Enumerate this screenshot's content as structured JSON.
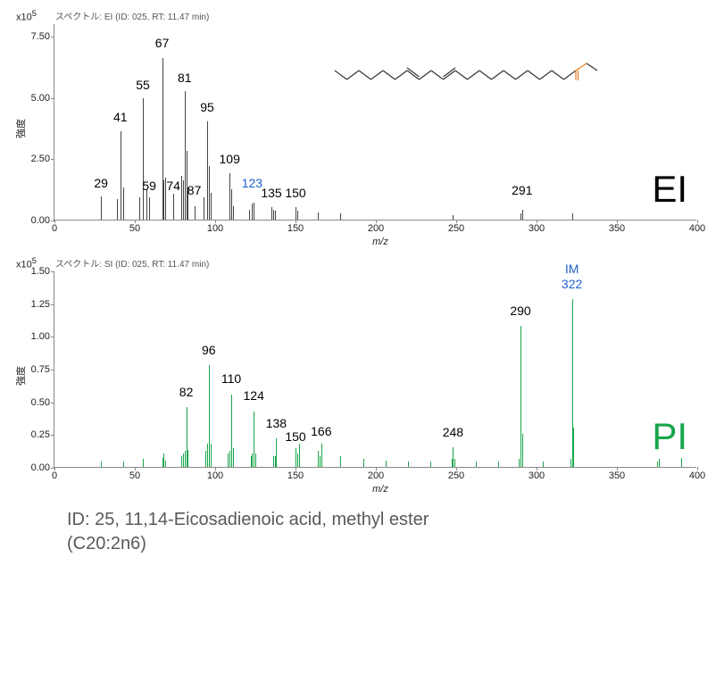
{
  "compound_name_line1": "ID: 25, 11,14-Eicosadienoic acid, methyl ester",
  "compound_name_line2": "(C20:2n6)",
  "ei": {
    "title": "スペクトル: EI (ID: 025, RT: 11.47 min)",
    "exponent": "x10",
    "exponent_sup": "5",
    "big_label": "EI",
    "big_label_color": "#000000",
    "bar_color": "#444444",
    "xlim": [
      0,
      400
    ],
    "ylim": [
      0,
      8.0
    ],
    "y_ticks": [
      "0.00",
      "2.50",
      "5.00",
      "7.50"
    ],
    "x_ticks": [
      0,
      50,
      100,
      150,
      200,
      250,
      300,
      350,
      400
    ],
    "y_axis_label": "強度",
    "x_axis_label": "m/z",
    "peaks": [
      {
        "mz": 29,
        "h": 0.95
      },
      {
        "mz": 39,
        "h": 0.85
      },
      {
        "mz": 41,
        "h": 3.6
      },
      {
        "mz": 43,
        "h": 1.3
      },
      {
        "mz": 53,
        "h": 0.9
      },
      {
        "mz": 55,
        "h": 4.95
      },
      {
        "mz": 57,
        "h": 1.2
      },
      {
        "mz": 59,
        "h": 0.9
      },
      {
        "mz": 67,
        "h": 6.6
      },
      {
        "mz": 68,
        "h": 1.6
      },
      {
        "mz": 69,
        "h": 1.7
      },
      {
        "mz": 74,
        "h": 1.05
      },
      {
        "mz": 79,
        "h": 1.8
      },
      {
        "mz": 80,
        "h": 1.6
      },
      {
        "mz": 81,
        "h": 5.25
      },
      {
        "mz": 82,
        "h": 2.8
      },
      {
        "mz": 83,
        "h": 1.3
      },
      {
        "mz": 87,
        "h": 0.55
      },
      {
        "mz": 93,
        "h": 0.9
      },
      {
        "mz": 95,
        "h": 4.0
      },
      {
        "mz": 96,
        "h": 2.2
      },
      {
        "mz": 97,
        "h": 1.1
      },
      {
        "mz": 109,
        "h": 1.9
      },
      {
        "mz": 110,
        "h": 1.25
      },
      {
        "mz": 111,
        "h": 0.55
      },
      {
        "mz": 121,
        "h": 0.4
      },
      {
        "mz": 123,
        "h": 0.65
      },
      {
        "mz": 124,
        "h": 0.7
      },
      {
        "mz": 135,
        "h": 0.5
      },
      {
        "mz": 136,
        "h": 0.4
      },
      {
        "mz": 137,
        "h": 0.35
      },
      {
        "mz": 150,
        "h": 0.5
      },
      {
        "mz": 151,
        "h": 0.35
      },
      {
        "mz": 164,
        "h": 0.3
      },
      {
        "mz": 178,
        "h": 0.25
      },
      {
        "mz": 248,
        "h": 0.2
      },
      {
        "mz": 290,
        "h": 0.25
      },
      {
        "mz": 291,
        "h": 0.4
      },
      {
        "mz": 322,
        "h": 0.25
      }
    ],
    "labels": [
      {
        "mz": 29,
        "y": 1.2,
        "text": "29",
        "color": "#000"
      },
      {
        "mz": 41,
        "y": 3.9,
        "text": "41",
        "color": "#000"
      },
      {
        "mz": 55,
        "y": 5.2,
        "text": "55",
        "color": "#000"
      },
      {
        "mz": 59,
        "y": 1.1,
        "text": "59",
        "color": "#000"
      },
      {
        "mz": 67,
        "y": 6.9,
        "text": "67",
        "color": "#000"
      },
      {
        "mz": 74,
        "y": 1.1,
        "text": "74",
        "color": "#000"
      },
      {
        "mz": 81,
        "y": 5.5,
        "text": "81",
        "color": "#000"
      },
      {
        "mz": 87,
        "y": 0.9,
        "text": "87",
        "color": "#000"
      },
      {
        "mz": 95,
        "y": 4.3,
        "text": "95",
        "color": "#000"
      },
      {
        "mz": 109,
        "y": 2.2,
        "text": "109",
        "color": "#000"
      },
      {
        "mz": 123,
        "y": 1.2,
        "text": "123",
        "color": "#2060d0"
      },
      {
        "mz": 135,
        "y": 0.8,
        "text": "135",
        "color": "#000"
      },
      {
        "mz": 150,
        "y": 0.8,
        "text": "150",
        "color": "#000"
      },
      {
        "mz": 291,
        "y": 0.9,
        "text": "291",
        "color": "#000"
      }
    ],
    "structure_color_c": "#333333",
    "structure_color_o": "#e67e22"
  },
  "pi": {
    "title": "スペクトル: SI (ID: 025, RT: 11.47 min)",
    "exponent": "x10",
    "exponent_sup": "5",
    "big_label": "PI",
    "big_label_color": "#17a64a",
    "bar_color": "#17a64a",
    "xlim": [
      0,
      400
    ],
    "ylim": [
      0,
      1.5
    ],
    "y_ticks": [
      "0.00",
      "0.25",
      "0.50",
      "0.75",
      "1.00",
      "1.25",
      "1.50"
    ],
    "x_ticks": [
      0,
      50,
      100,
      150,
      200,
      250,
      300,
      350,
      400
    ],
    "y_axis_label": "強度",
    "x_axis_label": "m/z",
    "peaks": [
      {
        "mz": 29,
        "h": 0.04
      },
      {
        "mz": 43,
        "h": 0.04
      },
      {
        "mz": 55,
        "h": 0.06
      },
      {
        "mz": 67,
        "h": 0.07
      },
      {
        "mz": 68,
        "h": 0.1
      },
      {
        "mz": 69,
        "h": 0.05
      },
      {
        "mz": 79,
        "h": 0.08
      },
      {
        "mz": 80,
        "h": 0.1
      },
      {
        "mz": 81,
        "h": 0.12
      },
      {
        "mz": 82,
        "h": 0.46
      },
      {
        "mz": 83,
        "h": 0.13
      },
      {
        "mz": 94,
        "h": 0.12
      },
      {
        "mz": 95,
        "h": 0.18
      },
      {
        "mz": 96,
        "h": 0.78
      },
      {
        "mz": 97,
        "h": 0.18
      },
      {
        "mz": 108,
        "h": 0.1
      },
      {
        "mz": 109,
        "h": 0.12
      },
      {
        "mz": 110,
        "h": 0.55
      },
      {
        "mz": 111,
        "h": 0.14
      },
      {
        "mz": 122,
        "h": 0.08
      },
      {
        "mz": 123,
        "h": 0.1
      },
      {
        "mz": 124,
        "h": 0.42
      },
      {
        "mz": 125,
        "h": 0.1
      },
      {
        "mz": 136,
        "h": 0.08
      },
      {
        "mz": 137,
        "h": 0.08
      },
      {
        "mz": 138,
        "h": 0.22
      },
      {
        "mz": 150,
        "h": 0.14
      },
      {
        "mz": 151,
        "h": 0.1
      },
      {
        "mz": 152,
        "h": 0.18
      },
      {
        "mz": 164,
        "h": 0.12
      },
      {
        "mz": 165,
        "h": 0.08
      },
      {
        "mz": 166,
        "h": 0.18
      },
      {
        "mz": 178,
        "h": 0.08
      },
      {
        "mz": 192,
        "h": 0.06
      },
      {
        "mz": 206,
        "h": 0.05
      },
      {
        "mz": 220,
        "h": 0.04
      },
      {
        "mz": 234,
        "h": 0.04
      },
      {
        "mz": 247,
        "h": 0.06
      },
      {
        "mz": 248,
        "h": 0.15
      },
      {
        "mz": 249,
        "h": 0.06
      },
      {
        "mz": 262,
        "h": 0.04
      },
      {
        "mz": 276,
        "h": 0.04
      },
      {
        "mz": 289,
        "h": 0.06
      },
      {
        "mz": 290,
        "h": 1.08
      },
      {
        "mz": 291,
        "h": 0.25
      },
      {
        "mz": 304,
        "h": 0.04
      },
      {
        "mz": 321,
        "h": 0.06
      },
      {
        "mz": 322,
        "h": 1.28
      },
      {
        "mz": 323,
        "h": 0.3
      },
      {
        "mz": 375,
        "h": 0.04
      },
      {
        "mz": 376,
        "h": 0.06
      },
      {
        "mz": 390,
        "h": 0.07
      }
    ],
    "labels": [
      {
        "mz": 82,
        "y": 0.52,
        "text": "82",
        "color": "#000"
      },
      {
        "mz": 96,
        "y": 0.84,
        "text": "96",
        "color": "#000"
      },
      {
        "mz": 110,
        "y": 0.62,
        "text": "110",
        "color": "#000"
      },
      {
        "mz": 124,
        "y": 0.49,
        "text": "124",
        "color": "#000"
      },
      {
        "mz": 138,
        "y": 0.28,
        "text": "138",
        "color": "#000"
      },
      {
        "mz": 150,
        "y": 0.18,
        "text": "150",
        "color": "#000"
      },
      {
        "mz": 166,
        "y": 0.22,
        "text": "166",
        "color": "#000"
      },
      {
        "mz": 248,
        "y": 0.21,
        "text": "248",
        "color": "#000"
      },
      {
        "mz": 290,
        "y": 1.14,
        "text": "290",
        "color": "#000"
      },
      {
        "mz": 322,
        "y": 1.46,
        "text": "IM",
        "color": "#2060d0"
      },
      {
        "mz": 322,
        "y": 1.34,
        "text": "322",
        "color": "#2060d0"
      }
    ]
  }
}
